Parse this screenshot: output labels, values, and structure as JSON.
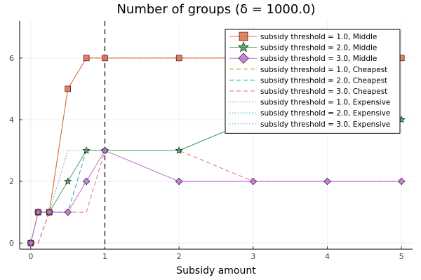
{
  "chart_data": {
    "type": "line",
    "title": "Number of groups (δ = 1000.0)",
    "xlabel": "Subsidy amount",
    "ylabel": "",
    "xlim": [
      -0.15,
      5.15
    ],
    "ylim": [
      -0.2,
      7.2
    ],
    "x_ticks": [
      0,
      1,
      2,
      3,
      4,
      5
    ],
    "y_ticks": [
      0,
      2,
      4,
      6
    ],
    "grid": true,
    "vertical_reference_line": 1.0,
    "legend_position": "top-right",
    "series": [
      {
        "name": "subsidy threshold = 1.0, Middle",
        "color": "#e26f46",
        "style": "solid",
        "marker": "square",
        "x": [
          0,
          0.1,
          0.25,
          0.5,
          0.75,
          1,
          2,
          3,
          4,
          5
        ],
        "y": [
          0,
          1,
          1,
          5,
          6,
          6,
          6,
          6,
          6,
          6
        ]
      },
      {
        "name": "subsidy threshold = 2.0, Middle",
        "color": "#3da44d",
        "style": "solid",
        "marker": "star",
        "x": [
          0,
          0.1,
          0.25,
          0.5,
          0.75,
          1,
          2,
          3,
          4,
          5
        ],
        "y": [
          0,
          1,
          1,
          2,
          3,
          3,
          3,
          4,
          4,
          4
        ]
      },
      {
        "name": "subsidy threshold = 3.0, Middle",
        "color": "#c271d2",
        "style": "solid",
        "marker": "diamond",
        "x": [
          0,
          0.1,
          0.25,
          0.5,
          0.75,
          1,
          2,
          3,
          4,
          5
        ],
        "y": [
          0,
          1,
          1,
          1,
          2,
          3,
          2,
          2,
          2,
          2
        ]
      },
      {
        "name": "subsidy threshold = 1.0, Cheapest",
        "color": "#ac8d18",
        "style": "dashed",
        "marker": "none",
        "x": [
          0,
          0.1,
          0.25,
          0.5,
          0.75,
          1,
          2,
          3,
          4,
          5
        ],
        "y": [
          0,
          0,
          1,
          5,
          6,
          6,
          6,
          6,
          6,
          6
        ]
      },
      {
        "name": "subsidy threshold = 2.0, Cheapest",
        "color": "#00a9ad",
        "style": "dashed",
        "marker": "none",
        "x": [
          0,
          0.1,
          0.25,
          0.5,
          0.75,
          1,
          2,
          3,
          4,
          5
        ],
        "y": [
          0,
          0,
          1,
          1,
          3,
          3,
          3,
          4,
          4,
          4
        ]
      },
      {
        "name": "subsidy threshold = 3.0, Cheapest",
        "color": "#ed5e93",
        "style": "dashed",
        "marker": "none",
        "x": [
          0,
          0.1,
          0.25,
          0.5,
          0.75,
          1,
          2,
          3,
          4,
          5
        ],
        "y": [
          0,
          0,
          1,
          1,
          1,
          3,
          3,
          2,
          2,
          2
        ]
      },
      {
        "name": "subsidy threshold = 1.0, Expensive",
        "color": "#c68225",
        "style": "dotted",
        "marker": "none",
        "x": [
          0,
          0.1,
          0.25,
          0.5,
          0.75,
          1,
          2,
          3,
          4,
          5
        ],
        "y": [
          0,
          1,
          1,
          5,
          6,
          6,
          6,
          6,
          6,
          6
        ]
      },
      {
        "name": "subsidy threshold = 2.0, Expensive",
        "color": "#00a98d",
        "style": "dotted",
        "marker": "none",
        "x": [
          0,
          0.1,
          0.25,
          0.5,
          0.75,
          1,
          2,
          3,
          4,
          5
        ],
        "y": [
          0,
          1,
          1,
          3,
          3,
          3,
          3,
          4,
          4,
          4
        ]
      },
      {
        "name": "subsidy threshold = 3.0, Expensive",
        "color": "#8e97ee",
        "style": "dotted",
        "marker": "none",
        "x": [
          0,
          0.1,
          0.25,
          0.5,
          0.75,
          1,
          2,
          3,
          4,
          5
        ],
        "y": [
          0,
          1,
          1,
          3,
          3,
          3,
          2,
          2,
          2,
          2
        ]
      }
    ]
  }
}
